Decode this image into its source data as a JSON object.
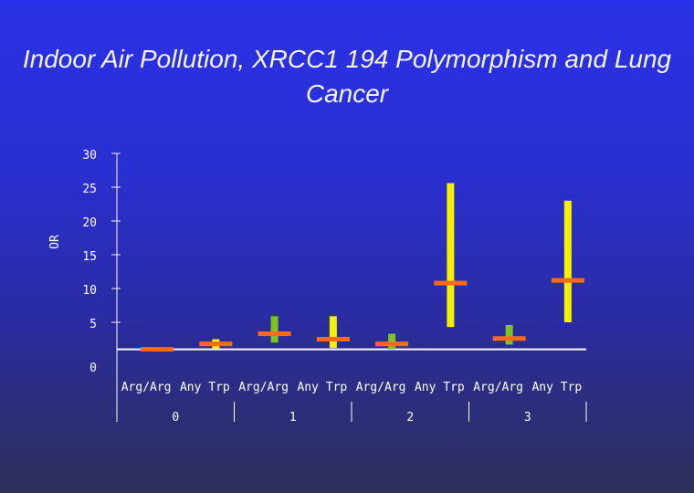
{
  "chart_data": {
    "type": "scatter",
    "title": "Indoor Air Pollution, XRCC1 194 Polymorphism and Lung Cancer",
    "ylabel": "OR",
    "ylim": [
      0,
      30
    ],
    "yticks": [
      0,
      5,
      10,
      15,
      20,
      25,
      30
    ],
    "grid": "horizontal",
    "categories": [
      "Arg/Arg",
      "Any Trp",
      "Arg/Arg",
      "Any Trp",
      "Arg/Arg",
      "Any Trp",
      "Arg/Arg",
      "Any Trp"
    ],
    "groups": [
      "0",
      "1",
      "2",
      "3"
    ],
    "points": [
      {
        "or": 1.0,
        "low": 1.0,
        "high": 1.0,
        "color": "#7ec31f"
      },
      {
        "or": 1.8,
        "low": 1.1,
        "high": 2.5,
        "color": "#f5f000"
      },
      {
        "or": 3.3,
        "low": 2.0,
        "high": 5.9,
        "color": "#7ec31f"
      },
      {
        "or": 2.5,
        "low": 1.2,
        "high": 5.9,
        "color": "#f5f000"
      },
      {
        "or": 1.8,
        "low": 1.0,
        "high": 3.3,
        "color": "#7ec31f"
      },
      {
        "or": 10.8,
        "low": 4.3,
        "high": 25.6,
        "color": "#f5f000"
      },
      {
        "or": 2.6,
        "low": 1.7,
        "high": 4.6,
        "color": "#7ec31f"
      },
      {
        "or": 11.2,
        "low": 5.0,
        "high": 23.0,
        "color": "#f5f000"
      }
    ],
    "marker_color": "#ff6a1a"
  }
}
